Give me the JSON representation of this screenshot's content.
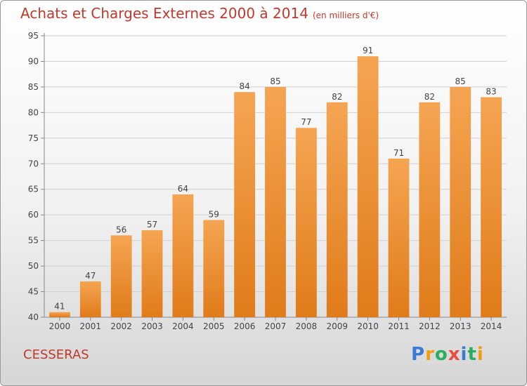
{
  "header": {
    "title": "Achats et Charges Externes 2000 à 2014",
    "subtitle": "(en milliers d'€)"
  },
  "footer": {
    "city": "CESSERAS",
    "logo_text": "Proxiti"
  },
  "colors": {
    "bar_top": "#f5a552",
    "bar_bottom": "#e07b1a",
    "title": "#c0392b",
    "logo": [
      "#3a7bd5",
      "#f39c12",
      "#27ae60",
      "#e74c3c",
      "#3a7bd5",
      "#27ae60",
      "#f39c12"
    ]
  },
  "chart_data": {
    "type": "bar",
    "categories": [
      "2000",
      "2001",
      "2002",
      "2003",
      "2004",
      "2005",
      "2006",
      "2007",
      "2008",
      "2009",
      "2010",
      "2011",
      "2012",
      "2013",
      "2014"
    ],
    "values": [
      41,
      47,
      56,
      57,
      64,
      59,
      84,
      85,
      77,
      82,
      91,
      71,
      82,
      85,
      83
    ],
    "ylim": [
      40,
      95
    ],
    "yticks": [
      40,
      45,
      50,
      55,
      60,
      65,
      70,
      75,
      80,
      85,
      90,
      95
    ],
    "grid": true,
    "data_labels": true
  }
}
